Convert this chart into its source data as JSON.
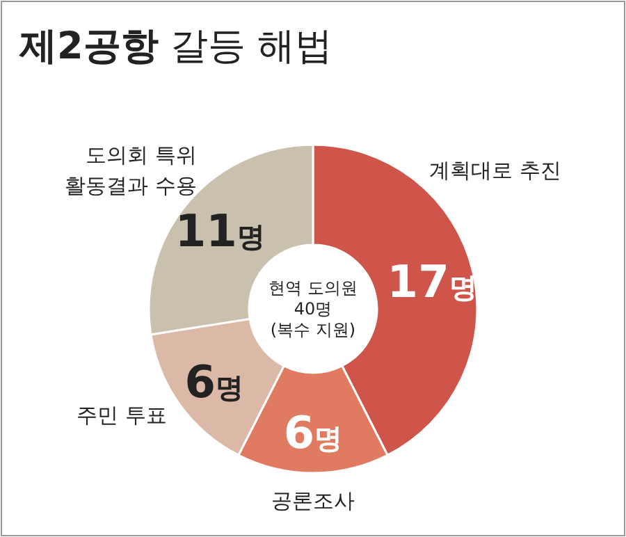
{
  "chart_data": {
    "type": "donut",
    "title": "제2공항 갈등 해법",
    "categories": [
      "계획대로 추진",
      "공론조사",
      "주민 투표",
      "도의회 특위 활동결과 수용"
    ],
    "values": [
      17,
      6,
      6,
      11
    ],
    "colors": [
      "#cf5449",
      "#e07b62",
      "#dcb8a6",
      "#c9c1ad"
    ],
    "value_labels": [
      "17명",
      "6명",
      "6명",
      "11명"
    ],
    "annotations": [
      "현역 도의원 40명 (복수 지원)"
    ]
  }
}
